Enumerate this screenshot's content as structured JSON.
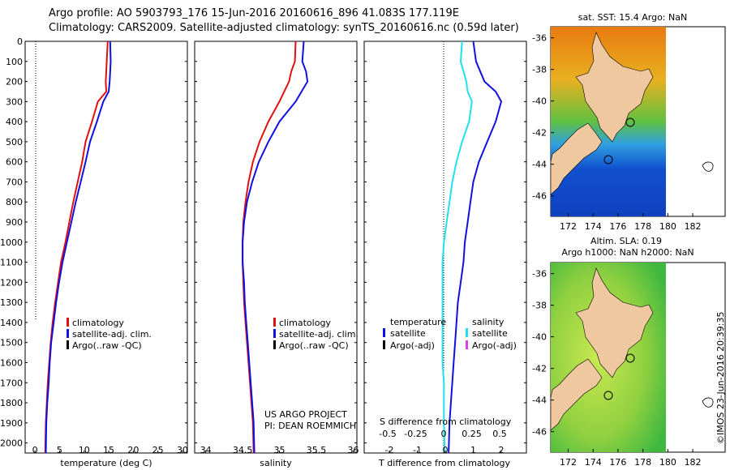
{
  "header": {
    "line1": "Argo profile: AO 5903793_176 15-Jun-2016 20160616_896 41.083S 177.119E",
    "line2": "Climatology: CARS2009. Satellite-adjusted climatology: synTS_20160616.nc (0.59d later)"
  },
  "colors": {
    "climatology": "#e01010",
    "satellite": "#1010e0",
    "argo": "#000000",
    "salinity_sat": "#20e0ee",
    "salinity_argo": "#e040e0",
    "land": "#f0c8a0"
  },
  "panels": {
    "temperature": {
      "xlabel": "temperature (deg C)",
      "xticks": [
        "0",
        "5",
        "10",
        "15",
        "20",
        "25",
        "30"
      ],
      "legend": [
        "climatology",
        "satellite-adj. clim.",
        "Argo(..raw -QC)"
      ]
    },
    "salinity": {
      "xlabel": "salinity",
      "xticks": [
        "34",
        "34.5",
        "35",
        "35.5",
        "36"
      ],
      "legend": [
        "climatology",
        "satellite-adj. clim.",
        "Argo(..raw -QC)"
      ],
      "credit1": "US ARGO PROJECT",
      "credit2": "PI: DEAN ROEMMICH"
    },
    "difference": {
      "xlabel": "T difference from climatology",
      "xticks": [
        "-2",
        "-1",
        "0",
        "1",
        "2"
      ],
      "top_label": "S difference from climatology",
      "top_ticks": [
        "-0.5",
        "-0.25",
        "0",
        "0.25",
        "0.5"
      ],
      "legend_temp_title": "temperature",
      "legend_temp": [
        "satellite",
        "Argo(-adj)"
      ],
      "legend_sal_title": "salinity",
      "legend_sal": [
        "satellite",
        "Argo(-adj)"
      ]
    },
    "depth_ticks": [
      "0",
      "100",
      "200",
      "300",
      "400",
      "500",
      "600",
      "700",
      "800",
      "900",
      "1000",
      "1100",
      "1200",
      "1300",
      "1400",
      "1500",
      "1600",
      "1700",
      "1800",
      "1900",
      "2000"
    ]
  },
  "maps": {
    "sst_title": "sat. SST: 15.4  Argo: NaN",
    "sla_title1": "Altim. SLA: 0.19",
    "sla_title2": "Argo h1000: NaN  h2000: NaN",
    "lat_ticks": [
      "-36",
      "-38",
      "-40",
      "-42",
      "-44",
      "-46"
    ],
    "lon_ticks": [
      "172",
      "174",
      "176",
      "178",
      "180",
      "182"
    ]
  },
  "footer": {
    "imos": "©IMOS 23-Jun-2016 20:39:35"
  },
  "chart_data": [
    {
      "type": "line",
      "title": "",
      "xlabel": "temperature (deg C)",
      "ylabel": "",
      "xlim": [
        -2,
        31
      ],
      "ylim": [
        2050,
        0
      ],
      "series": [
        {
          "name": "climatology",
          "x": [
            14.8,
            14.6,
            14.4,
            14.5,
            12.8,
            11.6,
            10.3,
            9.6,
            8.7,
            7.8,
            7.0,
            6.2,
            5.3,
            4.7,
            4.1,
            3.6,
            3.2,
            2.9,
            2.6,
            2.4,
            2.2,
            2.1
          ],
          "y": [
            0,
            100,
            200,
            250,
            300,
            400,
            500,
            600,
            700,
            800,
            900,
            1000,
            1100,
            1200,
            1300,
            1400,
            1500,
            1600,
            1700,
            1800,
            1900,
            2050
          ]
        },
        {
          "name": "satellite-adj. clim.",
          "x": [
            15.3,
            15.4,
            15.2,
            15.0,
            13.9,
            12.6,
            11.2,
            10.3,
            9.3,
            8.3,
            7.4,
            6.5,
            5.6,
            4.9,
            4.3,
            3.8,
            3.3,
            3.0,
            2.8,
            2.5,
            2.3,
            2.2
          ],
          "y": [
            0,
            100,
            200,
            250,
            300,
            400,
            500,
            600,
            700,
            800,
            900,
            1000,
            1100,
            1200,
            1300,
            1400,
            1500,
            1600,
            1700,
            1800,
            1900,
            2050
          ]
        }
      ]
    },
    {
      "type": "line",
      "title": "",
      "xlabel": "salinity",
      "ylabel": "",
      "xlim": [
        33.85,
        36.05
      ],
      "ylim": [
        2050,
        0
      ],
      "series": [
        {
          "name": "climatology",
          "x": [
            35.22,
            35.21,
            35.16,
            35.13,
            35.0,
            34.85,
            34.73,
            34.64,
            34.58,
            34.54,
            34.51,
            34.5,
            34.5,
            34.51,
            34.52,
            34.54,
            34.56,
            34.58,
            34.6,
            34.62,
            34.64,
            34.65
          ],
          "y": [
            0,
            100,
            150,
            200,
            300,
            400,
            500,
            600,
            700,
            800,
            900,
            1000,
            1100,
            1200,
            1300,
            1400,
            1500,
            1600,
            1700,
            1800,
            1900,
            2050
          ]
        },
        {
          "name": "satellite-adj. clim.",
          "x": [
            35.33,
            35.31,
            35.36,
            35.38,
            35.22,
            35.0,
            34.85,
            34.72,
            34.63,
            34.56,
            34.52,
            34.5,
            34.5,
            34.52,
            34.53,
            34.55,
            34.57,
            34.59,
            34.61,
            34.63,
            34.65,
            34.66
          ],
          "y": [
            0,
            100,
            150,
            200,
            300,
            400,
            500,
            600,
            700,
            800,
            900,
            1000,
            1100,
            1200,
            1300,
            1400,
            1500,
            1600,
            1700,
            1800,
            1900,
            2050
          ]
        }
      ]
    },
    {
      "type": "line",
      "title": "",
      "xlabel": "T difference from climatology",
      "ylabel": "",
      "xlim": [
        -2.9,
        2.9
      ],
      "ylim": [
        2050,
        0
      ],
      "series": [
        {
          "name": "temperature satellite",
          "x": [
            1.0,
            1.1,
            1.4,
            1.8,
            2.0,
            1.8,
            1.5,
            1.2,
            1.0,
            0.9,
            0.8,
            0.7,
            0.65,
            0.55,
            0.45,
            0.4,
            0.35,
            0.3,
            0.25,
            0.2,
            0.15,
            0.12
          ],
          "y": [
            0,
            100,
            200,
            250,
            300,
            400,
            500,
            600,
            700,
            800,
            900,
            1000,
            1100,
            1200,
            1300,
            1400,
            1500,
            1600,
            1700,
            1800,
            1900,
            2050
          ]
        },
        {
          "name": "salinity satellite (T-axis scaled)",
          "x": [
            0.6,
            0.55,
            0.75,
            0.8,
            0.95,
            0.85,
            0.6,
            0.4,
            0.25,
            0.15,
            0.05,
            -0.05,
            -0.1,
            -0.1,
            -0.1,
            -0.1,
            -0.1,
            -0.1,
            -0.05,
            -0.05,
            -0.05,
            -0.02
          ],
          "y": [
            0,
            100,
            200,
            250,
            300,
            400,
            500,
            600,
            700,
            800,
            900,
            1000,
            1100,
            1200,
            1300,
            1400,
            1500,
            1600,
            1700,
            1800,
            1900,
            2050
          ]
        }
      ]
    }
  ]
}
